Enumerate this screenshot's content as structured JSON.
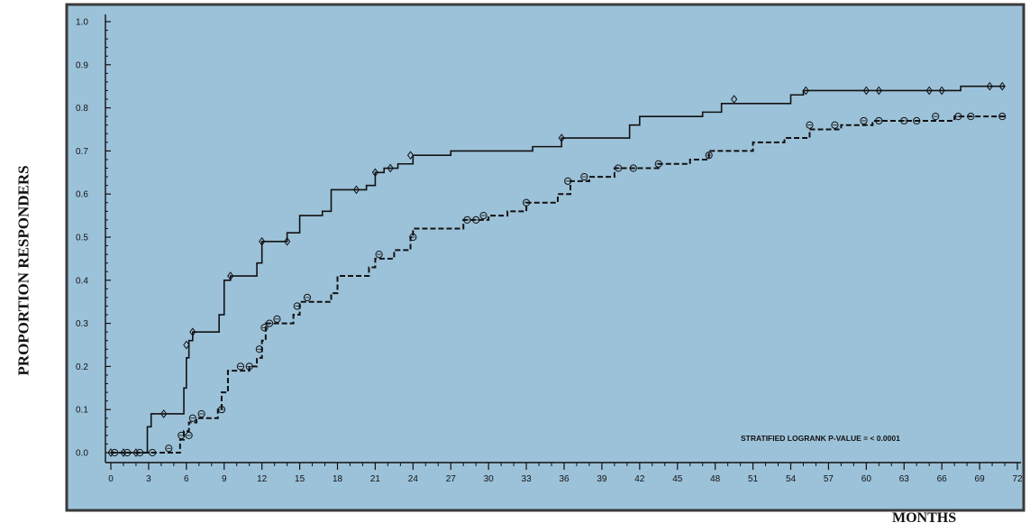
{
  "chart_data": {
    "type": "line",
    "xlabel": "MONTHS",
    "ylabel": "PROPORTION RESPONDERS",
    "xlim": [
      0,
      72
    ],
    "ylim": [
      0.0,
      1.0
    ],
    "xticks": [
      0,
      3,
      6,
      9,
      12,
      15,
      18,
      21,
      24,
      27,
      30,
      33,
      36,
      39,
      42,
      45,
      48,
      51,
      54,
      57,
      60,
      63,
      66,
      69,
      72
    ],
    "yticks": [
      "0.0",
      "0.1",
      "0.2",
      "0.3",
      "0.4",
      "0.5",
      "0.6",
      "0.7",
      "0.8",
      "0.9",
      "1.0"
    ],
    "grid": false,
    "annotation": "STRATIFIED LOGRANK P-VALUE = < 0.0001",
    "series": [
      {
        "style": "solid",
        "censor_marker": "diamond",
        "x": [
          0,
          2.8,
          2.9,
          3.2,
          5.6,
          5.8,
          6.0,
          6.2,
          6.5,
          8.3,
          8.6,
          9.0,
          9.5,
          11.3,
          11.6,
          12.0,
          13.0,
          14.0,
          15.0,
          16.8,
          17.5,
          19.0,
          20.3,
          21.0,
          21.7,
          22.8,
          24.0,
          27.0,
          33.5,
          35.8,
          40.5,
          41.2,
          42.0,
          47.0,
          48.5,
          54.0,
          55.0,
          60.0,
          67.5,
          71.0
        ],
        "y": [
          0.0,
          0.0,
          0.06,
          0.09,
          0.09,
          0.15,
          0.22,
          0.26,
          0.28,
          0.28,
          0.32,
          0.4,
          0.41,
          0.41,
          0.44,
          0.49,
          0.49,
          0.51,
          0.55,
          0.56,
          0.61,
          0.61,
          0.62,
          0.65,
          0.66,
          0.67,
          0.69,
          0.7,
          0.71,
          0.73,
          0.73,
          0.76,
          0.78,
          0.79,
          0.81,
          0.83,
          0.84,
          0.84,
          0.85,
          0.85
        ],
        "censored": [
          [
            0,
            0.0
          ],
          [
            1,
            0.0
          ],
          [
            2,
            0.0
          ],
          [
            4.2,
            0.09
          ],
          [
            6.0,
            0.25
          ],
          [
            6.5,
            0.28
          ],
          [
            9.5,
            0.41
          ],
          [
            12.0,
            0.49
          ],
          [
            14.0,
            0.49
          ],
          [
            19.5,
            0.61
          ],
          [
            21.0,
            0.65
          ],
          [
            22.2,
            0.66
          ],
          [
            23.8,
            0.69
          ],
          [
            35.8,
            0.73
          ],
          [
            49.5,
            0.82
          ],
          [
            55.2,
            0.84
          ],
          [
            60.0,
            0.84
          ],
          [
            61.0,
            0.84
          ],
          [
            65.0,
            0.84
          ],
          [
            66.0,
            0.84
          ],
          [
            69.8,
            0.85
          ],
          [
            70.8,
            0.85
          ]
        ]
      },
      {
        "style": "dashed",
        "censor_marker": "circle",
        "x": [
          0,
          5.2,
          5.5,
          5.8,
          6.2,
          6.8,
          8.5,
          8.8,
          9.3,
          11.0,
          11.6,
          12.0,
          12.3,
          14.5,
          15.0,
          17.5,
          18.0,
          20.5,
          21.0,
          22.5,
          23.8,
          24.0,
          28.0,
          28.5,
          30.0,
          31.5,
          33.0,
          35.5,
          36.5,
          38.0,
          40.0,
          41.5,
          43.5,
          46.0,
          47.5,
          51.0,
          53.5,
          55.5,
          58.0,
          60.5,
          65.0,
          67.0,
          71.0
        ],
        "y": [
          0.0,
          0.0,
          0.03,
          0.05,
          0.07,
          0.08,
          0.1,
          0.14,
          0.19,
          0.2,
          0.22,
          0.26,
          0.3,
          0.32,
          0.35,
          0.37,
          0.41,
          0.43,
          0.45,
          0.47,
          0.5,
          0.52,
          0.54,
          0.54,
          0.55,
          0.56,
          0.58,
          0.6,
          0.63,
          0.64,
          0.66,
          0.66,
          0.67,
          0.68,
          0.7,
          0.72,
          0.73,
          0.75,
          0.76,
          0.77,
          0.77,
          0.78,
          0.78
        ],
        "censored": [
          [
            0.3,
            0.0
          ],
          [
            1.3,
            0.0
          ],
          [
            2.3,
            0.0
          ],
          [
            3.3,
            0.0
          ],
          [
            4.6,
            0.01
          ],
          [
            5.6,
            0.04
          ],
          [
            6.2,
            0.04
          ],
          [
            6.5,
            0.08
          ],
          [
            7.2,
            0.09
          ],
          [
            8.8,
            0.1
          ],
          [
            10.3,
            0.2
          ],
          [
            11.0,
            0.2
          ],
          [
            11.8,
            0.24
          ],
          [
            12.2,
            0.29
          ],
          [
            12.6,
            0.3
          ],
          [
            13.2,
            0.31
          ],
          [
            14.8,
            0.34
          ],
          [
            15.6,
            0.36
          ],
          [
            21.3,
            0.46
          ],
          [
            24.0,
            0.5
          ],
          [
            28.3,
            0.54
          ],
          [
            29.0,
            0.54
          ],
          [
            29.6,
            0.55
          ],
          [
            33.0,
            0.58
          ],
          [
            36.3,
            0.63
          ],
          [
            37.6,
            0.64
          ],
          [
            40.3,
            0.66
          ],
          [
            41.5,
            0.66
          ],
          [
            43.5,
            0.67
          ],
          [
            47.5,
            0.69
          ],
          [
            55.5,
            0.76
          ],
          [
            57.5,
            0.76
          ],
          [
            59.8,
            0.77
          ],
          [
            61.0,
            0.77
          ],
          [
            63.0,
            0.77
          ],
          [
            64.0,
            0.77
          ],
          [
            65.5,
            0.78
          ],
          [
            67.3,
            0.78
          ],
          [
            68.3,
            0.78
          ],
          [
            70.8,
            0.78
          ]
        ]
      }
    ]
  }
}
